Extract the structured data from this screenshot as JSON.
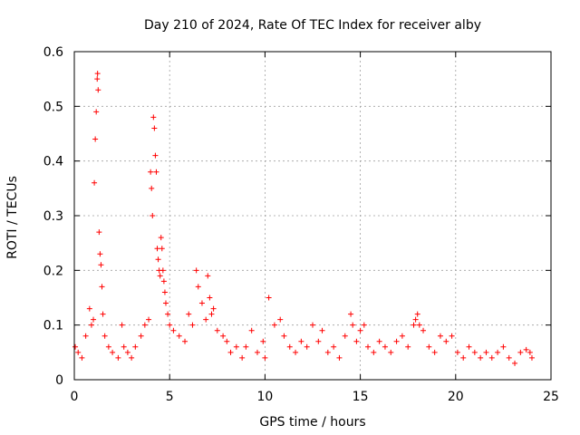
{
  "chart_data": {
    "type": "scatter",
    "title": "Day 210 of 2024, Rate Of TEC Index for receiver alby",
    "xlabel": "GPS time / hours",
    "ylabel": "ROTI / TECUs",
    "xlim": [
      0,
      25
    ],
    "ylim": [
      0,
      0.6
    ],
    "xticks": [
      0,
      5,
      10,
      15,
      20,
      25
    ],
    "yticks": [
      0,
      0.1,
      0.2,
      0.3,
      0.4,
      0.5,
      0.6
    ],
    "xtick_labels": [
      "0",
      "5",
      "10",
      "15",
      "20",
      "25"
    ],
    "ytick_labels": [
      "0",
      "0.1",
      "0.2",
      "0.3",
      "0.4",
      "0.5",
      "0.6"
    ],
    "grid": true,
    "marker": "+",
    "color": "#ff0000",
    "series": [
      {
        "x": [
          0.05,
          0.2,
          0.4,
          0.6,
          0.8,
          0.9,
          1.0,
          1.05,
          1.1,
          1.15,
          1.2,
          1.22,
          1.25,
          1.3,
          1.35,
          1.4,
          1.45,
          1.5,
          1.6,
          1.8,
          2.0,
          2.3,
          2.5,
          2.6,
          2.8,
          3.0,
          3.2,
          3.5,
          3.7,
          3.9,
          4.0,
          4.05,
          4.1,
          4.15,
          4.2,
          4.25,
          4.3,
          4.35,
          4.4,
          4.45,
          4.5,
          4.55,
          4.6,
          4.65,
          4.7,
          4.75,
          4.8,
          4.9,
          5.0,
          5.2,
          5.5,
          5.8,
          6.0,
          6.2,
          6.4,
          6.5,
          6.7,
          6.9,
          7.0,
          7.1,
          7.2,
          7.3,
          7.5,
          7.8,
          8.0,
          8.2,
          8.5,
          8.8,
          9.0,
          9.3,
          9.6,
          9.9,
          10.0,
          10.2,
          10.5,
          10.8,
          11.0,
          11.3,
          11.6,
          11.9,
          12.2,
          12.5,
          12.8,
          13.0,
          13.3,
          13.6,
          13.9,
          14.2,
          14.5,
          14.6,
          14.8,
          15.0,
          15.2,
          15.4,
          15.7,
          16.0,
          16.3,
          16.6,
          16.9,
          17.2,
          17.5,
          17.8,
          17.9,
          18.0,
          18.1,
          18.3,
          18.6,
          18.9,
          19.2,
          19.5,
          19.8,
          20.1,
          20.4,
          20.7,
          21.0,
          21.3,
          21.6,
          21.9,
          22.2,
          22.5,
          22.8,
          23.1,
          23.4,
          23.7,
          23.9,
          24.0
        ],
        "y": [
          0.06,
          0.05,
          0.04,
          0.08,
          0.13,
          0.1,
          0.11,
          0.36,
          0.44,
          0.49,
          0.55,
          0.56,
          0.53,
          0.27,
          0.23,
          0.21,
          0.17,
          0.12,
          0.08,
          0.06,
          0.05,
          0.04,
          0.1,
          0.06,
          0.05,
          0.04,
          0.06,
          0.08,
          0.1,
          0.11,
          0.38,
          0.35,
          0.3,
          0.48,
          0.46,
          0.41,
          0.38,
          0.24,
          0.22,
          0.2,
          0.19,
          0.26,
          0.24,
          0.2,
          0.18,
          0.16,
          0.14,
          0.12,
          0.1,
          0.09,
          0.08,
          0.07,
          0.12,
          0.1,
          0.2,
          0.17,
          0.14,
          0.11,
          0.19,
          0.15,
          0.12,
          0.13,
          0.09,
          0.08,
          0.07,
          0.05,
          0.06,
          0.04,
          0.06,
          0.09,
          0.05,
          0.07,
          0.04,
          0.15,
          0.1,
          0.11,
          0.08,
          0.06,
          0.05,
          0.07,
          0.06,
          0.1,
          0.07,
          0.09,
          0.05,
          0.06,
          0.04,
          0.08,
          0.12,
          0.1,
          0.07,
          0.09,
          0.1,
          0.06,
          0.05,
          0.07,
          0.06,
          0.05,
          0.07,
          0.08,
          0.06,
          0.1,
          0.11,
          0.12,
          0.1,
          0.09,
          0.06,
          0.05,
          0.08,
          0.07,
          0.08,
          0.05,
          0.04,
          0.06,
          0.05,
          0.04,
          0.05,
          0.04,
          0.05,
          0.06,
          0.04,
          0.03,
          0.05,
          0.055,
          0.05,
          0.04
        ]
      }
    ]
  }
}
